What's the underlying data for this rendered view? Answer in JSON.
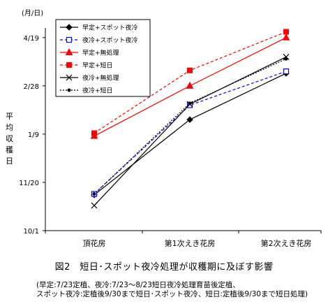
{
  "chart_data": {
    "type": "line",
    "categories": [
      "頂花房",
      "第1次えき花房",
      "第2次えき花房"
    ],
    "y_unit": "(月/日)",
    "ylabel": "平均収穫日",
    "y_ticks": [
      {
        "label": "10/1",
        "day": 0
      },
      {
        "label": "11/20",
        "day": 50
      },
      {
        "label": "1/9",
        "day": 100
      },
      {
        "label": "2/28",
        "day": 150
      },
      {
        "label": "4/19",
        "day": 200
      }
    ],
    "ylim": [
      0,
      210
    ],
    "grid": false,
    "legend_position": "top-left",
    "series": [
      {
        "name": "早定+スポット夜冷",
        "color": "#000000",
        "dash": "",
        "marker": "diamond",
        "values": [
          37,
          115,
          163
        ]
      },
      {
        "name": "夜冷+スポット夜冷",
        "color": "#0000ff",
        "dash": "4,3",
        "marker": "open-square",
        "values": [
          38,
          130,
          165
        ]
      },
      {
        "name": "早定+無処理",
        "color": "#ff0000",
        "dash": "",
        "marker": "triangle",
        "values": [
          98,
          150,
          200
        ]
      },
      {
        "name": "早定+短日",
        "color": "#ff0000",
        "dash": "4,3",
        "marker": "square",
        "values": [
          101,
          166,
          206
        ]
      },
      {
        "name": "夜冷+無処理",
        "color": "#000000",
        "dash": "",
        "marker": "x",
        "values": [
          26,
          131,
          180
        ]
      },
      {
        "name": "夜冷+短日",
        "color": "#000000",
        "dash": "2,2",
        "marker": "dot",
        "values": [
          38,
          132,
          178
        ]
      }
    ]
  },
  "caption": "図2　短日･スポット夜冷処理が収穫期に及ぼす影響",
  "note_line1": "(早定:7/23定植、夜冷:7/23～8/23短日夜冷処理育苗後定植、",
  "note_line2": "スポット夜冷:定植後9/30まで短日･スポット夜冷、短日:定植後9/30まで短日処理)"
}
